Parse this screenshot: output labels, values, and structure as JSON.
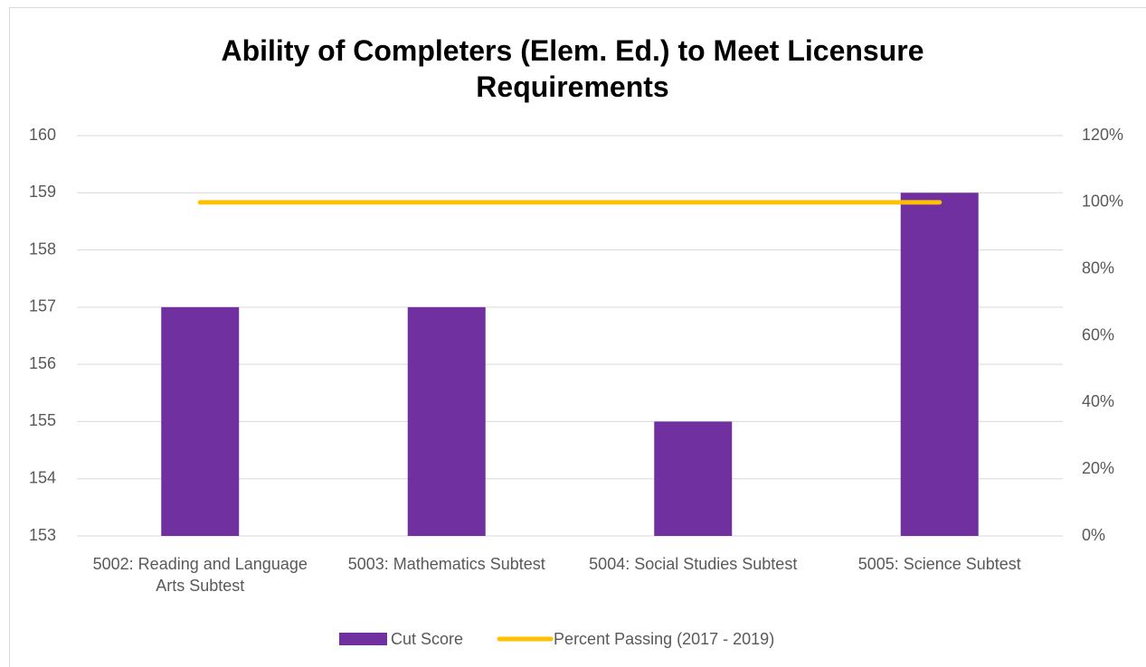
{
  "chart_data": {
    "type": "bar",
    "title": "Ability of Completers (Elem. Ed.) to Meet Licensure Requirements",
    "categories": [
      "5002: Reading and Language Arts Subtest",
      "5003: Mathematics Subtest",
      "5004: Social Studies Subtest",
      "5005: Science Subtest"
    ],
    "series": [
      {
        "name": "Cut Score",
        "type": "bar",
        "color": "#7030a0",
        "values": [
          157,
          157,
          155,
          159
        ]
      },
      {
        "name": "Percent Passing (2017 - 2019)",
        "type": "line",
        "axis": "y2",
        "color": "#ffc000",
        "values": [
          100,
          100,
          100,
          100
        ]
      }
    ],
    "ylim": [
      153,
      160
    ],
    "yticks": [
      153,
      154,
      155,
      156,
      157,
      158,
      159,
      160
    ],
    "y2lim": [
      0,
      120
    ],
    "y2ticks": [
      {
        "value": 0,
        "label": "0%"
      },
      {
        "value": 20,
        "label": "20%"
      },
      {
        "value": 40,
        "label": "40%"
      },
      {
        "value": 60,
        "label": "60%"
      },
      {
        "value": 80,
        "label": "80%"
      },
      {
        "value": 100,
        "label": "100%"
      },
      {
        "value": 120,
        "label": "120%"
      }
    ],
    "grid": true,
    "legend": "bottom"
  }
}
